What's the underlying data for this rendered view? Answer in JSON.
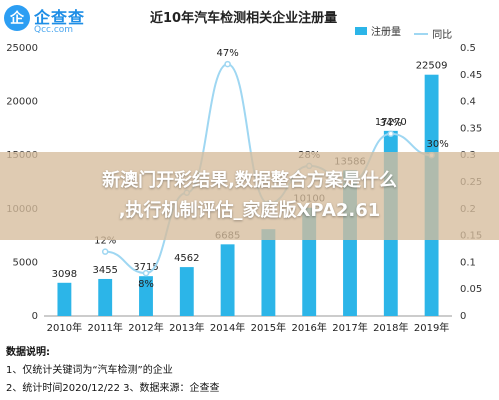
{
  "logo": {
    "mark": "企",
    "name": "企查查",
    "url": "Qcc.com"
  },
  "chart_data": {
    "type": "bar",
    "title": "近10年汽车检测相关企业注册量",
    "categories": [
      "2010年",
      "2011年",
      "2012年",
      "2013年",
      "2014年",
      "2015年",
      "2016年",
      "2017年",
      "2018年",
      "2019年"
    ],
    "series": [
      {
        "name": "注册量",
        "kind": "bar",
        "color": "#2cb5e8",
        "values": [
          3098,
          3455,
          3715,
          4562,
          6685,
          8100,
          10100,
          13586,
          17270,
          22509
        ],
        "labels": [
          "3098",
          "3455",
          "3715",
          "4562",
          "6685",
          "",
          "10100",
          "13586",
          "17270",
          "22509"
        ]
      },
      {
        "name": "同比",
        "kind": "line",
        "color": "#9fd7f2",
        "axis": "right",
        "values": [
          null,
          0.12,
          0.08,
          0.23,
          0.47,
          0.21,
          0.28,
          0.25,
          0.34,
          0.3
        ],
        "labels": [
          "",
          "12%",
          "8%",
          "",
          "47%",
          "",
          "28%",
          "",
          "34%",
          "30%"
        ]
      }
    ],
    "yTicks": [
      "0",
      "5000",
      "10000",
      "15000",
      "20000",
      "25000"
    ],
    "ylim": [
      0,
      25000
    ],
    "yRightTicks": [
      "0",
      "0.05",
      "0.1",
      "0.15",
      "0.2",
      "0.25",
      "0.3",
      "0.35",
      "0.4",
      "0.45",
      "0.5"
    ],
    "yRightLim": [
      0,
      0.5
    ],
    "legend_position": "top-right",
    "grid": false
  },
  "notes": {
    "title": "数据说明:",
    "line1": "1、仅统计关键词为“汽车检测”的企业",
    "line2": "2、统计时间2020/12/22    3、数据来源：企查查"
  },
  "banner": {
    "line1": "新澳门开彩结果,数据整合方案是什么",
    "line2": ",执行机制评估_家庭版XPA2.61"
  }
}
